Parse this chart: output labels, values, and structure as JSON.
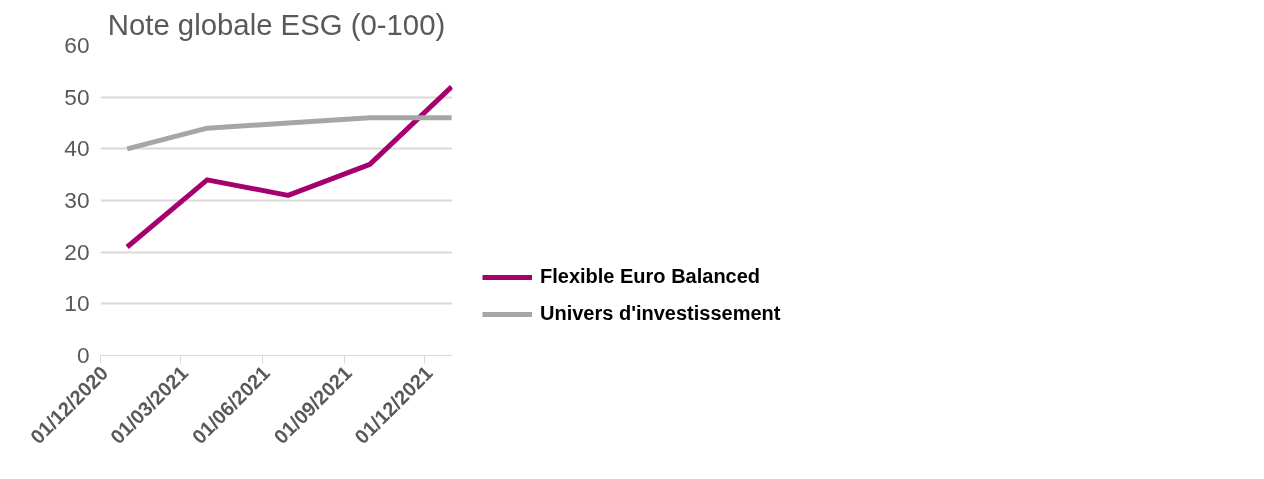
{
  "chart_data": {
    "type": "line",
    "title": "Note globale ESG (0-100)",
    "x": [
      "2020-12-31",
      "2021-03-31",
      "2021-06-30",
      "2021-09-30",
      "2021-12-31"
    ],
    "series": [
      {
        "name": "Flexible Euro Balanced",
        "color": "#a5006e",
        "values": [
          21,
          34,
          31,
          37,
          52
        ]
      },
      {
        "name": "Univers d'investissement",
        "color": "#a6a6a6",
        "values": [
          40,
          44,
          45,
          46,
          46
        ]
      }
    ],
    "xlim": [
      "2020-12-01",
      "2022-01-01"
    ],
    "xticks": [
      {
        "value": "2020-12-01",
        "label": "01/12/2020"
      },
      {
        "value": "2021-03-01",
        "label": "01/03/2021"
      },
      {
        "value": "2021-06-01",
        "label": "01/06/2021"
      },
      {
        "value": "2021-09-01",
        "label": "01/09/2021"
      },
      {
        "value": "2021-12-01",
        "label": "01/12/2021"
      }
    ],
    "ylim": [
      0,
      60
    ],
    "yticks": [
      0,
      10,
      20,
      30,
      40,
      50,
      60
    ],
    "grid": "y",
    "legend": "right",
    "marker": "none",
    "line_style": "solid"
  }
}
